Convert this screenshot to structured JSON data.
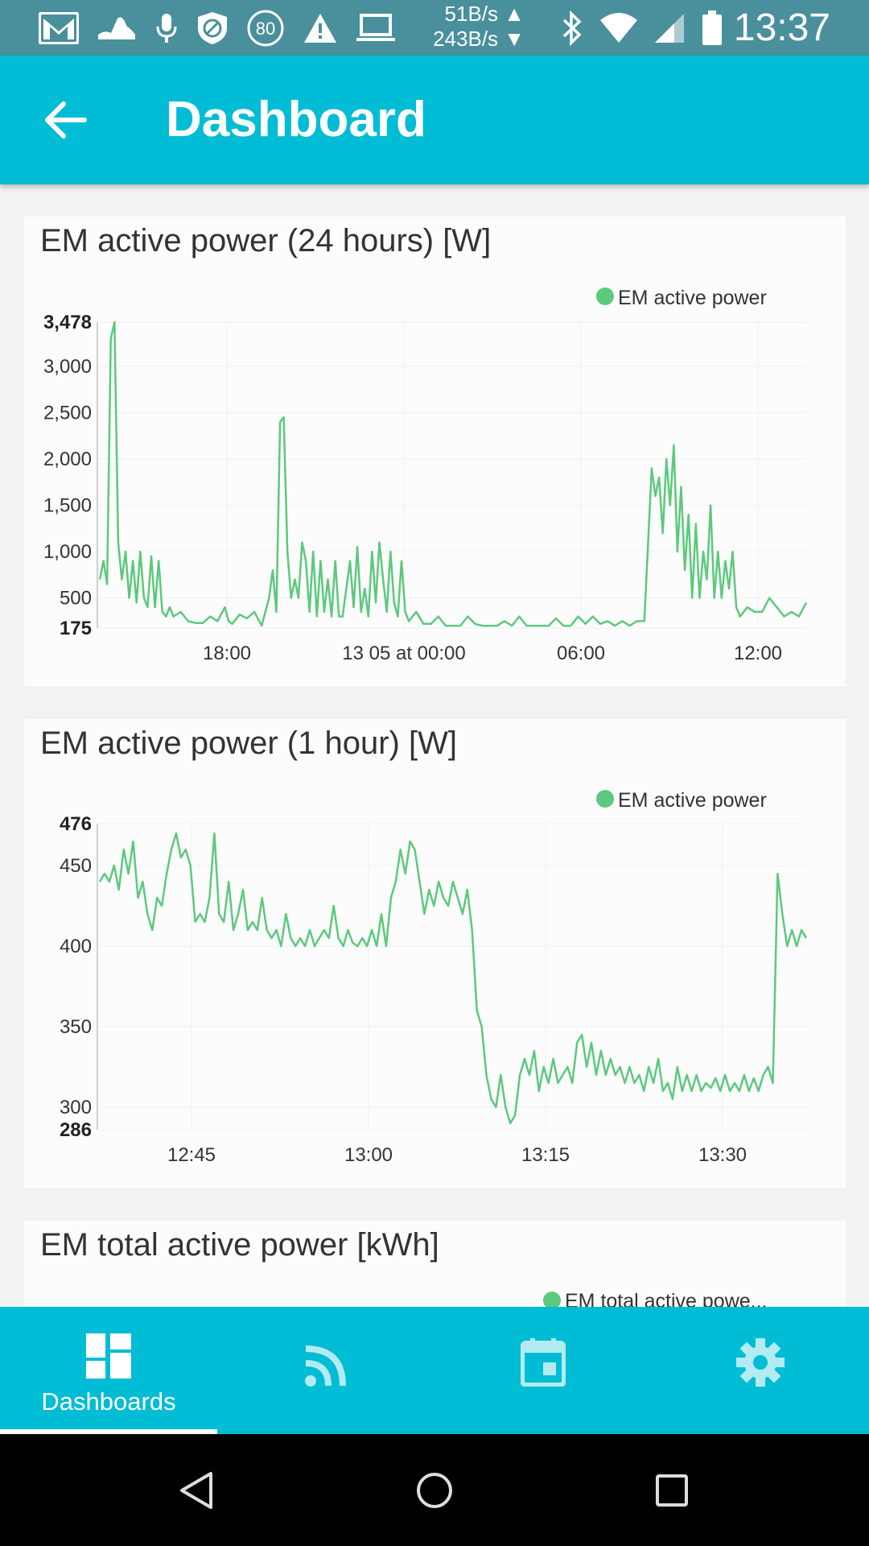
{
  "status_bar": {
    "battery_saver_level": "80",
    "upload_speed": "51B/s ▲",
    "download_speed": "243B/s ▼",
    "time": "13:37",
    "icons": [
      "gmail-icon",
      "fitness-icon",
      "mic-icon",
      "data-saver-icon",
      "circle-80-icon",
      "warning-icon",
      "laptop-icon",
      "bluetooth-icon",
      "wifi-icon",
      "signal-icon",
      "battery-icon"
    ]
  },
  "app_bar": {
    "title": "Dashboard",
    "back_icon": "arrow-left-icon"
  },
  "cards": [
    {
      "title": "EM active power (24 hours) [W]",
      "legend": "EM active power",
      "color": "#5cc97d",
      "chart_data": {
        "type": "line",
        "title": "EM active power (24 hours) [W]",
        "series": [
          {
            "name": "EM active power",
            "values_hint": "time series"
          }
        ],
        "ylim": [
          175,
          3478
        ],
        "y_ticks": [
          "3,478",
          "3,000",
          "2,500",
          "2,000",
          "1,500",
          "1,000",
          "500",
          "175"
        ],
        "x_ticks": [
          "18:00",
          "13 05 at 00:00",
          "06:00",
          "12:00"
        ],
        "legend_position": "top-right",
        "points": [
          [
            0,
            700
          ],
          [
            0.5,
            900
          ],
          [
            1,
            650
          ],
          [
            1.5,
            3300
          ],
          [
            2,
            3478
          ],
          [
            2.5,
            1100
          ],
          [
            3,
            700
          ],
          [
            3.5,
            1000
          ],
          [
            4,
            500
          ],
          [
            4.5,
            900
          ],
          [
            5,
            450
          ],
          [
            5.5,
            1000
          ],
          [
            6,
            500
          ],
          [
            6.5,
            400
          ],
          [
            7,
            950
          ],
          [
            7.5,
            400
          ],
          [
            8,
            900
          ],
          [
            8.5,
            350
          ],
          [
            9,
            300
          ],
          [
            9.5,
            400
          ],
          [
            10,
            300
          ],
          [
            11,
            350
          ],
          [
            12,
            250
          ],
          [
            13,
            230
          ],
          [
            14,
            230
          ],
          [
            15,
            300
          ],
          [
            16,
            250
          ],
          [
            17,
            400
          ],
          [
            17.5,
            250
          ],
          [
            18,
            220
          ],
          [
            19,
            320
          ],
          [
            20,
            280
          ],
          [
            21,
            350
          ],
          [
            22,
            200
          ],
          [
            23,
            500
          ],
          [
            23.5,
            800
          ],
          [
            24,
            350
          ],
          [
            24.5,
            2400
          ],
          [
            25,
            2450
          ],
          [
            25.5,
            1000
          ],
          [
            26,
            500
          ],
          [
            26.5,
            700
          ],
          [
            27,
            500
          ],
          [
            27.5,
            1100
          ],
          [
            28,
            900
          ],
          [
            28.5,
            350
          ],
          [
            29,
            1000
          ],
          [
            29.5,
            300
          ],
          [
            30,
            900
          ],
          [
            30.5,
            350
          ],
          [
            31,
            700
          ],
          [
            31.5,
            300
          ],
          [
            32,
            900
          ],
          [
            32.5,
            300
          ],
          [
            33,
            300
          ],
          [
            34,
            900
          ],
          [
            34.5,
            400
          ],
          [
            35,
            1050
          ],
          [
            35.5,
            350
          ],
          [
            36,
            600
          ],
          [
            36.5,
            300
          ],
          [
            37,
            1000
          ],
          [
            37.5,
            450
          ],
          [
            38,
            1100
          ],
          [
            38.5,
            700
          ],
          [
            39,
            350
          ],
          [
            39.5,
            1000
          ],
          [
            40,
            450
          ],
          [
            40.5,
            300
          ],
          [
            41,
            900
          ],
          [
            41.5,
            350
          ],
          [
            42,
            250
          ],
          [
            43,
            350
          ],
          [
            44,
            220
          ],
          [
            45,
            220
          ],
          [
            46,
            300
          ],
          [
            47,
            200
          ],
          [
            48,
            200
          ],
          [
            49,
            200
          ],
          [
            50,
            300
          ],
          [
            51,
            220
          ],
          [
            52,
            200
          ],
          [
            53,
            200
          ],
          [
            54,
            200
          ],
          [
            55,
            250
          ],
          [
            56,
            200
          ],
          [
            57,
            300
          ],
          [
            58,
            200
          ],
          [
            59,
            200
          ],
          [
            60,
            200
          ],
          [
            61,
            200
          ],
          [
            62,
            280
          ],
          [
            63,
            200
          ],
          [
            64,
            200
          ],
          [
            65,
            300
          ],
          [
            66,
            220
          ],
          [
            67,
            300
          ],
          [
            68,
            220
          ],
          [
            69,
            250
          ],
          [
            70,
            200
          ],
          [
            71,
            250
          ],
          [
            72,
            200
          ],
          [
            73,
            250
          ],
          [
            74,
            250
          ],
          [
            75,
            1900
          ],
          [
            75.5,
            1600
          ],
          [
            76,
            1800
          ],
          [
            76.5,
            1200
          ],
          [
            77,
            2000
          ],
          [
            77.5,
            1500
          ],
          [
            78,
            2150
          ],
          [
            78.5,
            1000
          ],
          [
            79,
            1700
          ],
          [
            79.5,
            800
          ],
          [
            80,
            1400
          ],
          [
            80.5,
            500
          ],
          [
            81,
            1300
          ],
          [
            81.5,
            500
          ],
          [
            82,
            1000
          ],
          [
            82.5,
            700
          ],
          [
            83,
            1500
          ],
          [
            83.5,
            500
          ],
          [
            84,
            1000
          ],
          [
            84.5,
            500
          ],
          [
            85,
            900
          ],
          [
            85.5,
            600
          ],
          [
            86,
            1000
          ],
          [
            86.5,
            400
          ],
          [
            87,
            300
          ],
          [
            88,
            400
          ],
          [
            89,
            350
          ],
          [
            90,
            350
          ],
          [
            91,
            500
          ],
          [
            92,
            400
          ],
          [
            93,
            300
          ],
          [
            94,
            350
          ],
          [
            95,
            300
          ],
          [
            96,
            450
          ]
        ]
      }
    },
    {
      "title": "EM active power (1 hour) [W]",
      "legend": "EM active power",
      "color": "#5cc97d",
      "chart_data": {
        "type": "line",
        "title": "EM active power (1 hour) [W]",
        "series": [
          {
            "name": "EM active power",
            "values_hint": "time series"
          }
        ],
        "ylim": [
          286,
          476
        ],
        "y_ticks": [
          "476",
          "450",
          "400",
          "350",
          "300",
          "286"
        ],
        "x_ticks": [
          "12:45",
          "13:00",
          "13:15",
          "13:30"
        ],
        "legend_position": "top-right",
        "points": [
          [
            0,
            440
          ],
          [
            0.5,
            445
          ],
          [
            1,
            440
          ],
          [
            1.5,
            450
          ],
          [
            2,
            435
          ],
          [
            2.5,
            460
          ],
          [
            3,
            445
          ],
          [
            3.5,
            465
          ],
          [
            4,
            430
          ],
          [
            4.5,
            440
          ],
          [
            5,
            420
          ],
          [
            5.5,
            410
          ],
          [
            6,
            430
          ],
          [
            6.5,
            425
          ],
          [
            7,
            445
          ],
          [
            7.5,
            460
          ],
          [
            8,
            470
          ],
          [
            8.5,
            455
          ],
          [
            9,
            460
          ],
          [
            9.5,
            450
          ],
          [
            10,
            415
          ],
          [
            10.5,
            420
          ],
          [
            11,
            415
          ],
          [
            11.5,
            430
          ],
          [
            12,
            470
          ],
          [
            12.5,
            420
          ],
          [
            13,
            415
          ],
          [
            13.5,
            440
          ],
          [
            14,
            410
          ],
          [
            14.5,
            420
          ],
          [
            15,
            435
          ],
          [
            15.5,
            410
          ],
          [
            16,
            415
          ],
          [
            16.5,
            410
          ],
          [
            17,
            430
          ],
          [
            17.5,
            410
          ],
          [
            18,
            405
          ],
          [
            18.5,
            410
          ],
          [
            19,
            400
          ],
          [
            19.5,
            420
          ],
          [
            20,
            405
          ],
          [
            20.5,
            400
          ],
          [
            21,
            405
          ],
          [
            21.5,
            400
          ],
          [
            22,
            410
          ],
          [
            22.5,
            400
          ],
          [
            23,
            405
          ],
          [
            23.5,
            410
          ],
          [
            24,
            405
          ],
          [
            24.5,
            425
          ],
          [
            25,
            405
          ],
          [
            25.5,
            400
          ],
          [
            26,
            410
          ],
          [
            26.5,
            402
          ],
          [
            27,
            400
          ],
          [
            27.5,
            405
          ],
          [
            28,
            400
          ],
          [
            28.5,
            410
          ],
          [
            29,
            400
          ],
          [
            29.5,
            420
          ],
          [
            30,
            400
          ],
          [
            30.5,
            430
          ],
          [
            31,
            440
          ],
          [
            31.5,
            460
          ],
          [
            32,
            445
          ],
          [
            32.5,
            465
          ],
          [
            33,
            460
          ],
          [
            33.5,
            440
          ],
          [
            34,
            420
          ],
          [
            34.5,
            435
          ],
          [
            35,
            425
          ],
          [
            35.5,
            440
          ],
          [
            36,
            430
          ],
          [
            36.5,
            425
          ],
          [
            37,
            440
          ],
          [
            37.5,
            430
          ],
          [
            38,
            420
          ],
          [
            38.5,
            435
          ],
          [
            39,
            410
          ],
          [
            39.5,
            360
          ],
          [
            40,
            350
          ],
          [
            40.5,
            320
          ],
          [
            41,
            305
          ],
          [
            41.5,
            300
          ],
          [
            42,
            320
          ],
          [
            42.5,
            300
          ],
          [
            43,
            290
          ],
          [
            43.5,
            295
          ],
          [
            44,
            320
          ],
          [
            44.5,
            330
          ],
          [
            45,
            320
          ],
          [
            45.5,
            335
          ],
          [
            46,
            310
          ],
          [
            46.5,
            325
          ],
          [
            47,
            315
          ],
          [
            47.5,
            330
          ],
          [
            48,
            315
          ],
          [
            48.5,
            320
          ],
          [
            49,
            325
          ],
          [
            49.5,
            315
          ],
          [
            50,
            340
          ],
          [
            50.5,
            345
          ],
          [
            51,
            325
          ],
          [
            51.5,
            340
          ],
          [
            52,
            320
          ],
          [
            52.5,
            335
          ],
          [
            53,
            320
          ],
          [
            53.5,
            330
          ],
          [
            54,
            320
          ],
          [
            54.5,
            325
          ],
          [
            55,
            315
          ],
          [
            55.5,
            325
          ],
          [
            56,
            315
          ],
          [
            56.5,
            320
          ],
          [
            57,
            310
          ],
          [
            57.5,
            325
          ],
          [
            58,
            315
          ],
          [
            58.5,
            330
          ],
          [
            59,
            310
          ],
          [
            59.5,
            315
          ],
          [
            60,
            305
          ],
          [
            60.5,
            325
          ],
          [
            61,
            310
          ],
          [
            61.5,
            320
          ],
          [
            62,
            310
          ],
          [
            62.5,
            320
          ],
          [
            63,
            310
          ],
          [
            63.5,
            315
          ],
          [
            64,
            312
          ],
          [
            64.5,
            318
          ],
          [
            65,
            310
          ],
          [
            65.5,
            320
          ],
          [
            66,
            310
          ],
          [
            66.5,
            315
          ],
          [
            67,
            310
          ],
          [
            67.5,
            320
          ],
          [
            68,
            310
          ],
          [
            68.5,
            318
          ],
          [
            69,
            310
          ],
          [
            69.5,
            320
          ],
          [
            70,
            325
          ],
          [
            70.5,
            315
          ],
          [
            71,
            445
          ],
          [
            71.5,
            420
          ],
          [
            72,
            400
          ],
          [
            72.5,
            410
          ],
          [
            73,
            400
          ],
          [
            73.5,
            410
          ],
          [
            74,
            405
          ]
        ]
      }
    },
    {
      "title": "EM total active power [kWh]",
      "legend": "EM total active powe...",
      "color": "#5cc97d"
    }
  ],
  "bottom_nav": {
    "items": [
      {
        "label": "Dashboards",
        "icon": "dashboard-icon",
        "active": true
      },
      {
        "label": "",
        "icon": "rss-feed-icon",
        "active": false
      },
      {
        "label": "",
        "icon": "calendar-icon",
        "active": false
      },
      {
        "label": "",
        "icon": "settings-gear-icon",
        "active": false
      }
    ]
  },
  "system_nav": {
    "buttons": [
      "back-triangle-icon",
      "home-circle-icon",
      "recents-square-icon"
    ]
  }
}
